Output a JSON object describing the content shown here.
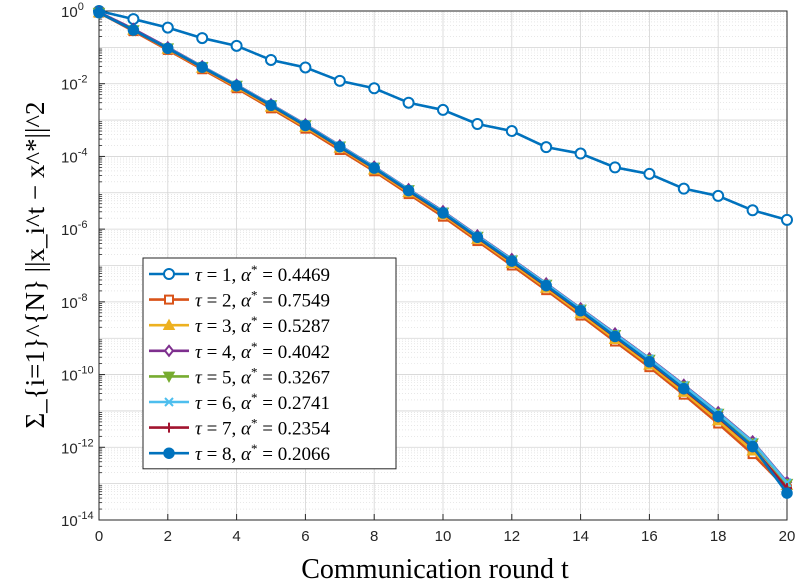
{
  "chart_data": {
    "type": "line",
    "yscale": "log",
    "xlabel": "Communication round t",
    "ylabel": "Σ_{i=1}^{N} ||x_i^t − x^*||^2",
    "xlim": [
      0,
      20
    ],
    "ylim": [
      1e-14,
      1
    ],
    "x_ticks": [
      0,
      2,
      4,
      6,
      8,
      10,
      12,
      14,
      16,
      18,
      20
    ],
    "y_ticks": [
      {
        "value": 1,
        "base": "10",
        "exp": "0"
      },
      {
        "value": 0.01,
        "base": "10",
        "exp": "-2"
      },
      {
        "value": 0.0001,
        "base": "10",
        "exp": "-4"
      },
      {
        "value": 1e-06,
        "base": "10",
        "exp": "-6"
      },
      {
        "value": 1e-08,
        "base": "10",
        "exp": "-8"
      },
      {
        "value": 1e-10,
        "base": "10",
        "exp": "-10"
      },
      {
        "value": 1e-12,
        "base": "10",
        "exp": "-12"
      },
      {
        "value": 1e-14,
        "base": "10",
        "exp": "-14"
      }
    ],
    "grid": true,
    "legend_position": "bottom-left",
    "x": [
      0,
      1,
      2,
      3,
      4,
      5,
      6,
      7,
      8,
      9,
      10,
      11,
      12,
      13,
      14,
      15,
      16,
      17,
      18,
      19,
      20
    ],
    "series": [
      {
        "name": "τ = 1, α* = 0.4469",
        "tau": "1",
        "alpha": "0.4469",
        "color": "#0072BD",
        "marker": "circle-open",
        "values": [
          1.0,
          0.6,
          0.35,
          0.18,
          0.11,
          0.045,
          0.028,
          0.012,
          0.0075,
          0.003,
          0.0019,
          0.00078,
          0.0005,
          0.00018,
          0.00012,
          5e-05,
          3.3e-05,
          1.3e-05,
          8.2e-06,
          3.3e-06,
          1.8e-06
        ]
      },
      {
        "name": "τ = 2, α* = 0.7549",
        "tau": "2",
        "alpha": "0.7549",
        "color": "#D95319",
        "marker": "square",
        "values": [
          0.9,
          0.28,
          0.085,
          0.025,
          0.0075,
          0.0021,
          0.00058,
          0.00015,
          3.9e-05,
          9.2e-06,
          2.2e-06,
          4.7e-07,
          1e-07,
          2.1e-08,
          4.2e-09,
          8.1e-10,
          1.6e-10,
          2.8e-11,
          4.5e-12,
          6.5e-13,
          7e-14
        ]
      },
      {
        "name": "τ = 3, α* = 0.5287",
        "tau": "3",
        "alpha": "0.5287",
        "color": "#EDB120",
        "marker": "triangle-up",
        "values": [
          0.9,
          0.3,
          0.09,
          0.027,
          0.0082,
          0.0023,
          0.00064,
          0.00017,
          4.3e-05,
          1.03e-05,
          2.5e-06,
          5.3e-07,
          1.15e-07,
          2.4e-08,
          4.8e-09,
          9.4e-10,
          1.85e-10,
          3.3e-11,
          5.4e-12,
          8e-13,
          9e-14
        ]
      },
      {
        "name": "τ = 4, α* = 0.4042",
        "tau": "4",
        "alpha": "0.4042",
        "color": "#7E2F8E",
        "marker": "diamond",
        "values": [
          0.92,
          0.32,
          0.1,
          0.03,
          0.0093,
          0.0027,
          0.00076,
          0.0002,
          5.2e-05,
          1.25e-05,
          3.1e-06,
          6.7e-07,
          1.5e-07,
          3.2e-08,
          6.6e-09,
          1.35e-09,
          2.8e-10,
          5.2e-11,
          9.2e-12,
          1.45e-12,
          1.1e-13
        ]
      },
      {
        "name": "τ = 5, α* = 0.3267",
        "tau": "5",
        "alpha": "0.3267",
        "color": "#77AC30",
        "marker": "triangle-down",
        "values": [
          0.9,
          0.3,
          0.095,
          0.029,
          0.0089,
          0.0026,
          0.00073,
          0.00019,
          5e-05,
          1.2e-05,
          2.9e-06,
          6.3e-07,
          1.4e-07,
          3e-08,
          6.2e-09,
          1.25e-09,
          2.6e-10,
          4.8e-11,
          8.5e-12,
          1.3e-12,
          1e-13
        ]
      },
      {
        "name": "τ = 6, α* = 0.2741",
        "tau": "6",
        "alpha": "0.2741",
        "color": "#4DBEEE",
        "marker": "x",
        "values": [
          0.9,
          0.3,
          0.096,
          0.0295,
          0.0091,
          0.00265,
          0.00074,
          0.000195,
          5.1e-05,
          1.22e-05,
          3e-06,
          6.5e-07,
          1.45e-07,
          3.1e-08,
          6.4e-09,
          1.3e-09,
          2.7e-10,
          5e-11,
          8.8e-12,
          1.4e-12,
          1.05e-13
        ]
      },
      {
        "name": "τ = 7, α* = 0.2354",
        "tau": "7",
        "alpha": "0.2354",
        "color": "#A2142F",
        "marker": "plus",
        "values": [
          0.9,
          0.3,
          0.093,
          0.028,
          0.0087,
          0.0025,
          0.0007,
          0.00018,
          4.7e-05,
          1.12e-05,
          2.7e-06,
          5.8e-07,
          1.28e-07,
          2.7e-08,
          5.5e-09,
          1.08e-09,
          2.15e-10,
          3.9e-11,
          6.6e-12,
          1e-12,
          7.5e-14
        ]
      },
      {
        "name": "τ = 8, α* = 0.2066",
        "tau": "8",
        "alpha": "0.2066",
        "color": "#0072BD",
        "marker": "circle-filled",
        "values": [
          0.9,
          0.3,
          0.094,
          0.0285,
          0.0088,
          0.00255,
          0.00071,
          0.000185,
          4.8e-05,
          1.15e-05,
          2.8e-06,
          6e-07,
          1.32e-07,
          2.8e-08,
          5.7e-09,
          1.12e-09,
          2.25e-10,
          4.1e-11,
          7e-12,
          1.05e-12,
          5.5e-14
        ]
      }
    ]
  }
}
